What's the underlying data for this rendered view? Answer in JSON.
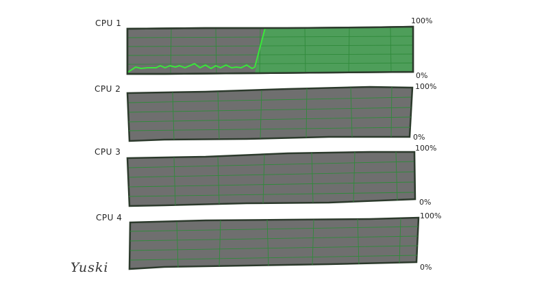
{
  "cpus": [
    {
      "label": "CPU 1",
      "max_label": "100%",
      "min_label": "0%",
      "load_fraction": 1.0
    },
    {
      "label": "CPU 2",
      "max_label": "100%",
      "min_label": "0%",
      "load_fraction": 0.0
    },
    {
      "label": "CPU 3",
      "max_label": "100%",
      "min_label": "0%",
      "load_fraction": 0.0
    },
    {
      "label": "CPU 4",
      "max_label": "100%",
      "min_label": "0%",
      "load_fraction": 0.0
    }
  ],
  "signature": "Yuski",
  "colors": {
    "panel": "#6f6f6f",
    "grid": "#2f8a3a",
    "border": "#2c3a2c",
    "load_fill": "#4e9e5a",
    "load_line": "#39e83a"
  }
}
